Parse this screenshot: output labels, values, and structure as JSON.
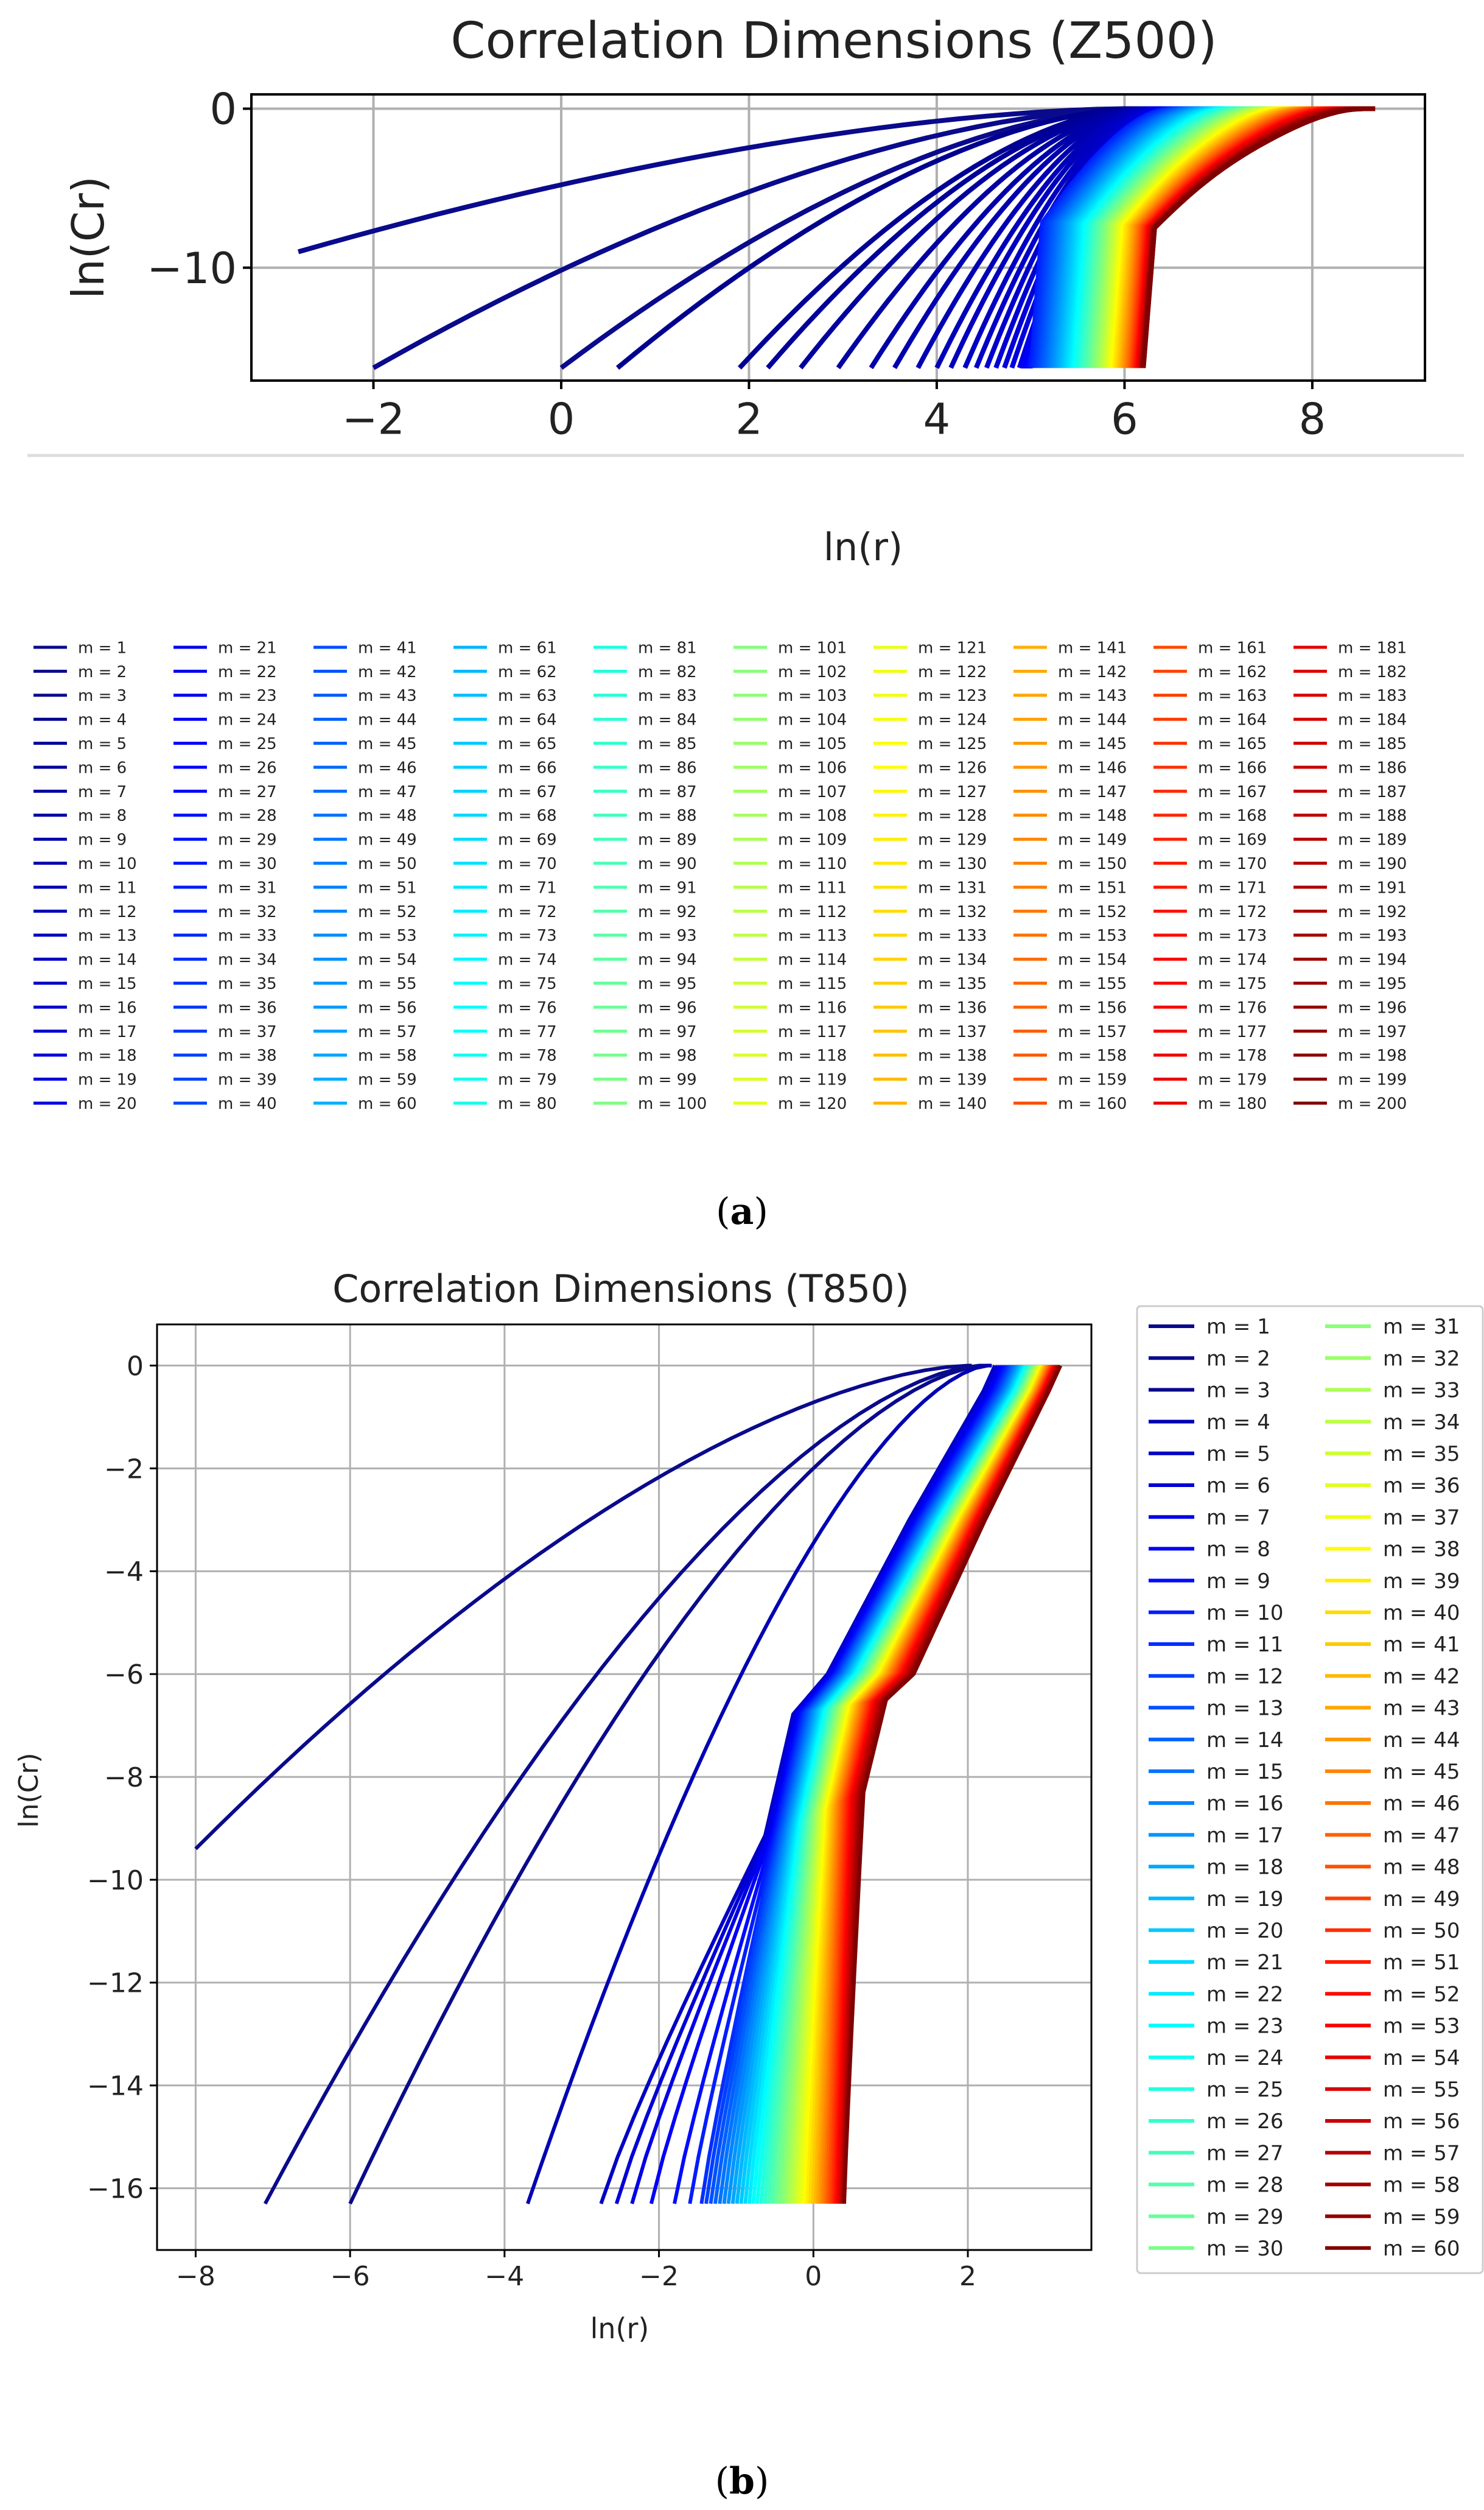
{
  "panel_a": {
    "caption_open": "(",
    "caption_letter": "a",
    "caption_close": ")"
  },
  "panel_b": {
    "caption_open": "(",
    "caption_letter": "b",
    "caption_close": ")"
  },
  "colors": {
    "axis": "#000000",
    "grid": "#b0b0b0",
    "colormap": "jet"
  },
  "chart_data": [
    {
      "id": "z500",
      "type": "line",
      "title": "Correlation Dimensions (Z500)",
      "xlabel": "ln(r)",
      "ylabel": "ln(Cr)",
      "xlim": [
        -3.3,
        9.2
      ],
      "ylim": [
        -17.1,
        0.9
      ],
      "xticks": [
        -2,
        0,
        2,
        4,
        6,
        8
      ],
      "xtick_labels": [
        "−2",
        "0",
        "2",
        "4",
        "6",
        "8"
      ],
      "yticks": [
        0,
        -10
      ],
      "ytick_labels": [
        "0",
        "−10"
      ],
      "grid": true,
      "series_count": 200,
      "legend_prefix": "m = ",
      "legend_columns": 10,
      "legend_placement": "below plot",
      "colormap": "jet",
      "y_floor": -16.3,
      "start_x": [
        -2.8,
        -2.0,
        0.0,
        0.6,
        1.9,
        2.2,
        2.55,
        2.95,
        3.3,
        3.55,
        3.8,
        4.0,
        4.15,
        4.3,
        4.42,
        4.53,
        4.63,
        4.72,
        4.8,
        4.88
      ],
      "start_y_m1": -9.0,
      "start_x_last": 6.2,
      "saturation_x_first": 6.0,
      "saturation_x_last": 8.55,
      "kink_y": -7.5
    },
    {
      "id": "t850",
      "type": "line",
      "title": "Correlation Dimensions (T850)",
      "xlabel": "ln(r)",
      "ylabel": "ln(Cr)",
      "xlim": [
        -8.5,
        3.6
      ],
      "ylim": [
        -17.2,
        0.8
      ],
      "xticks": [
        -8,
        -6,
        -4,
        -2,
        0,
        2
      ],
      "xtick_labels": [
        "−8",
        "−6",
        "−4",
        "−2",
        "0",
        "2"
      ],
      "yticks": [
        0,
        -2,
        -4,
        -6,
        -8,
        -10,
        -12,
        -14,
        -16
      ],
      "ytick_labels": [
        "0",
        "−2",
        "−4",
        "−6",
        "−8",
        "−10",
        "−12",
        "−14",
        "−16"
      ],
      "grid": true,
      "series_count": 60,
      "legend_prefix": "m = ",
      "legend_columns": 2,
      "legend_placement": "right of plot",
      "colormap": "jet",
      "y_floor": -16.3,
      "start_x": [
        -8.0,
        -7.1,
        -6.0,
        -3.7,
        -2.75,
        -2.55,
        -2.35,
        -2.1,
        -1.8,
        -1.6,
        -1.45
      ],
      "start_y_m1": -9.4,
      "start_x_last": 0.4,
      "saturation_x_first": 2.0,
      "saturation_x_last": 3.15,
      "kink_y": -8.0
    }
  ]
}
